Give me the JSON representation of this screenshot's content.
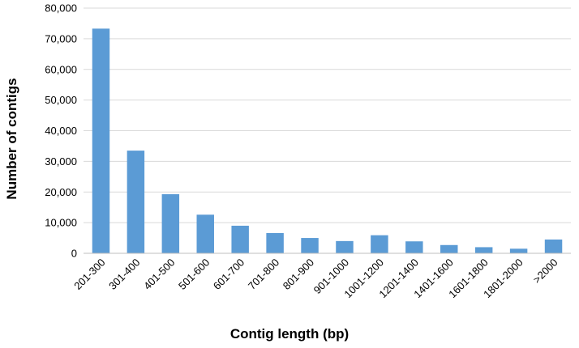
{
  "chart_data": {
    "type": "bar",
    "title": "",
    "xlabel": "Contig length (bp)",
    "ylabel": "Number of contigs",
    "categories": [
      "201-300",
      "301-400",
      "401-500",
      "501-600",
      "601-700",
      "701-800",
      "801-900",
      "901-1000",
      "1001-1200",
      "1201-1400",
      "1401-1600",
      "1601-1800",
      "1801-2000",
      ">2000"
    ],
    "values": [
      73300,
      33500,
      19300,
      12600,
      9000,
      6600,
      5000,
      4000,
      5900,
      3900,
      2700,
      2000,
      1500,
      4500
    ],
    "ylim": [
      0,
      80000
    ],
    "yticks": [
      0,
      10000,
      20000,
      30000,
      40000,
      50000,
      60000,
      70000,
      80000
    ],
    "ytick_labels": [
      "0",
      "10,000",
      "20,000",
      "30,000",
      "40,000",
      "50,000",
      "60,000",
      "70,000",
      "80,000"
    ],
    "grid": true,
    "legend": "none",
    "bar_color": "#5B9BD5",
    "grid_color": "#D9D9D9"
  }
}
